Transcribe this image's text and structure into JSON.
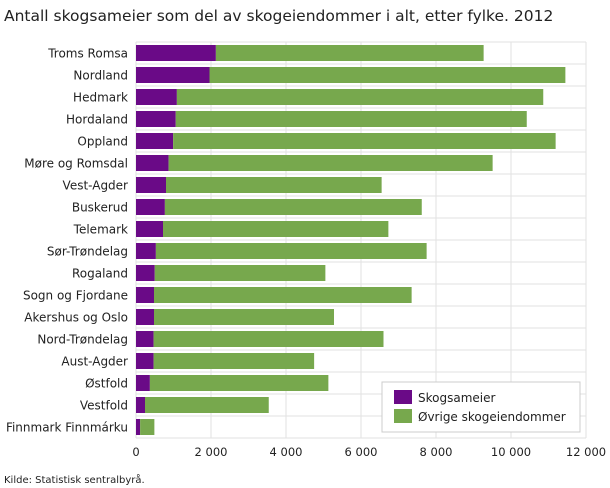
{
  "chart_data": {
    "type": "bar",
    "orientation": "horizontal",
    "stacked": true,
    "title": "Antall skogsameier som del av skogeiendommer i alt, etter fylke. 2012",
    "source": "Kilde: Statistisk sentralbyrå.",
    "categories": [
      "Troms Romsa",
      "Nordland",
      "Hedmark",
      "Hordaland",
      "Oppland",
      "Møre og Romsdal",
      "Vest-Agder",
      "Buskerud",
      "Telemark",
      "Sør-Trøndelag",
      "Rogaland",
      "Sogn og Fjordane",
      "Akershus og Oslo",
      "Nord-Trøndelag",
      "Aust-Agder",
      "Østfold",
      "Vestfold",
      "Finnmark Finnmárku"
    ],
    "series": [
      {
        "name": "Skogsameier",
        "color": "#6a0a87",
        "values": [
          2130,
          1960,
          1090,
          1060,
          990,
          870,
          800,
          770,
          720,
          530,
          500,
          480,
          480,
          470,
          470,
          370,
          240,
          110
        ]
      },
      {
        "name": "Øvrige skogeiendommer",
        "color": "#77a84d",
        "values": [
          7140,
          9490,
          9770,
          9360,
          10200,
          8640,
          5750,
          6850,
          6010,
          7220,
          4550,
          6870,
          4800,
          6130,
          4280,
          4760,
          3300,
          380
        ]
      }
    ],
    "xlim": [
      0,
      12000
    ],
    "xticks": [
      0,
      2000,
      4000,
      6000,
      8000,
      10000,
      12000
    ],
    "xtick_labels": [
      "0",
      "2 000",
      "4 000",
      "6 000",
      "8 000",
      "10 000",
      "12 000"
    ],
    "grid": true,
    "legend_position": "bottom-right"
  }
}
